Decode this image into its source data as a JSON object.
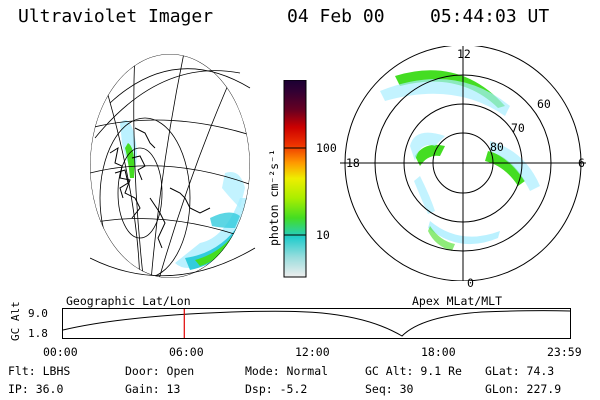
{
  "header": {
    "instrument": "Ultraviolet Imager",
    "date": "04 Feb 00",
    "time": "05:44:03 UT"
  },
  "colorbar": {
    "unit_label": "photon cm⁻²s⁻¹",
    "ticks": [
      "100",
      "10"
    ]
  },
  "left_panel": {
    "caption": "Geographic Lat/Lon"
  },
  "right_panel": {
    "caption": "Apex MLat/MLT",
    "mlt_labels": {
      "top": "12",
      "left": "18",
      "right": "6",
      "bottom": "0"
    },
    "lat_labels": [
      "60",
      "70",
      "80"
    ]
  },
  "timeline": {
    "ylabel": "GC Alt",
    "y_ticks": [
      "9.0",
      "1.8"
    ],
    "x_ticks": [
      "00:00",
      "06:00",
      "12:00",
      "18:00",
      "23:59"
    ],
    "marker_hour": 5.73
  },
  "status": {
    "filter": "Flt: LBHS",
    "door": "Door: Open",
    "mode": "Mode: Normal",
    "gc_alt": "GC Alt: 9.1 Re",
    "glat": "GLat:  74.3",
    "ip": "IP: 36.0",
    "gain": "Gain: 13",
    "dsp": "Dsp:   -5.2",
    "seq": "Seq: 30",
    "glon": "GLon: 227.9"
  },
  "colors": {
    "marker": "#e00000",
    "aurora_green": "#44dd22",
    "aurora_cyan": "#33ccdd",
    "aurora_lightblue": "#aaeeff"
  }
}
